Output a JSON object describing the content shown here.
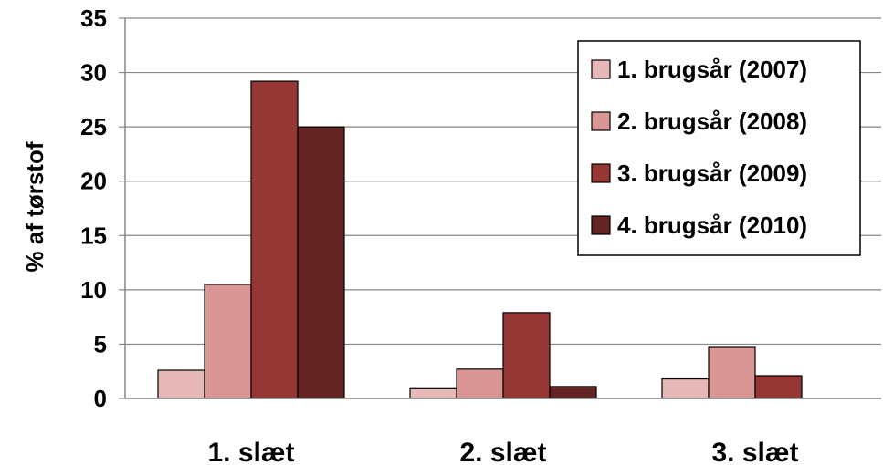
{
  "chart_data": {
    "type": "bar",
    "title": "",
    "xlabel": "",
    "ylabel": "% af tørstof",
    "ylim": [
      0,
      35
    ],
    "yticks": [
      0,
      5,
      10,
      15,
      20,
      25,
      30,
      35
    ],
    "grid": true,
    "legend_position": "top-right",
    "categories": [
      "1. slæt",
      "2. slæt",
      "3. slæt"
    ],
    "series": [
      {
        "name": "1. brugsår (2007)",
        "color": "#E6B9B8",
        "values": [
          2.6,
          0.9,
          1.8
        ]
      },
      {
        "name": "2. brugsår (2008)",
        "color": "#D99694",
        "values": [
          10.5,
          2.7,
          4.7
        ]
      },
      {
        "name": "3. brugsår (2009)",
        "color": "#953735",
        "values": [
          29.2,
          7.9,
          2.1
        ]
      },
      {
        "name": "4. brugsår (2010)",
        "color": "#632523",
        "values": [
          25.0,
          1.1,
          null
        ]
      }
    ]
  }
}
